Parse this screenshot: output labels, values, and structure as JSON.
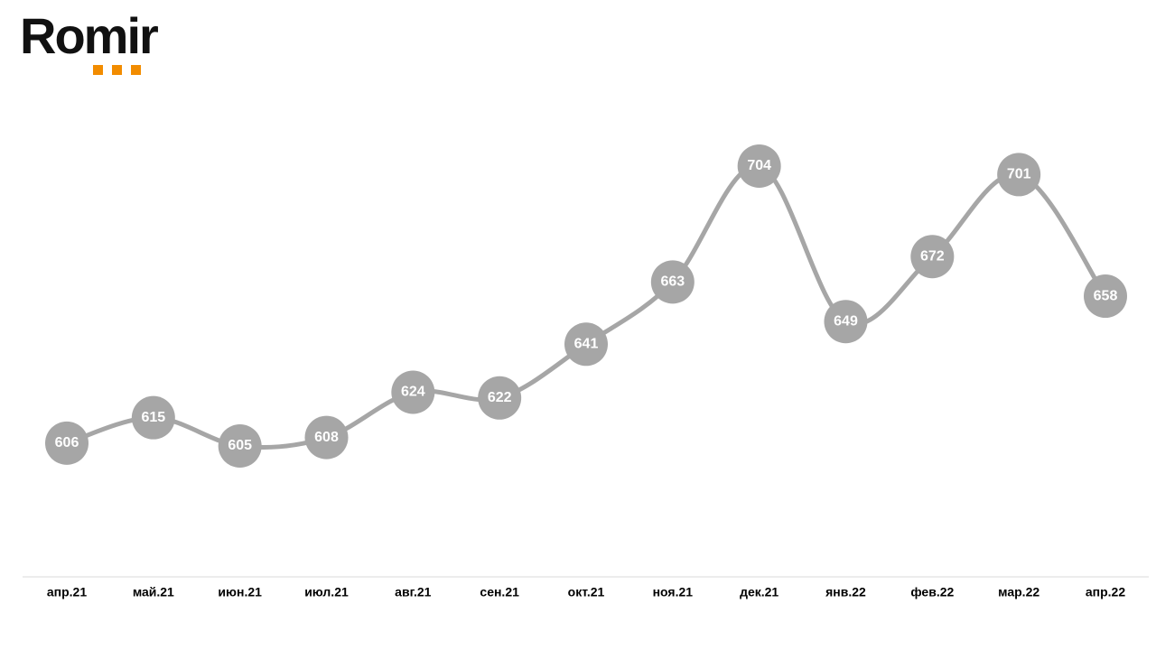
{
  "brand": "Romir",
  "chart_data": {
    "type": "line",
    "categories": [
      "апр.21",
      "май.21",
      "июн.21",
      "июл.21",
      "авг.21",
      "сен.21",
      "окт.21",
      "ноя.21",
      "дек.21",
      "янв.22",
      "фев.22",
      "мар.22",
      "апр.22"
    ],
    "values": [
      606,
      615,
      605,
      608,
      624,
      622,
      641,
      663,
      704,
      649,
      672,
      701,
      658
    ],
    "color": "#a6a6a6"
  }
}
